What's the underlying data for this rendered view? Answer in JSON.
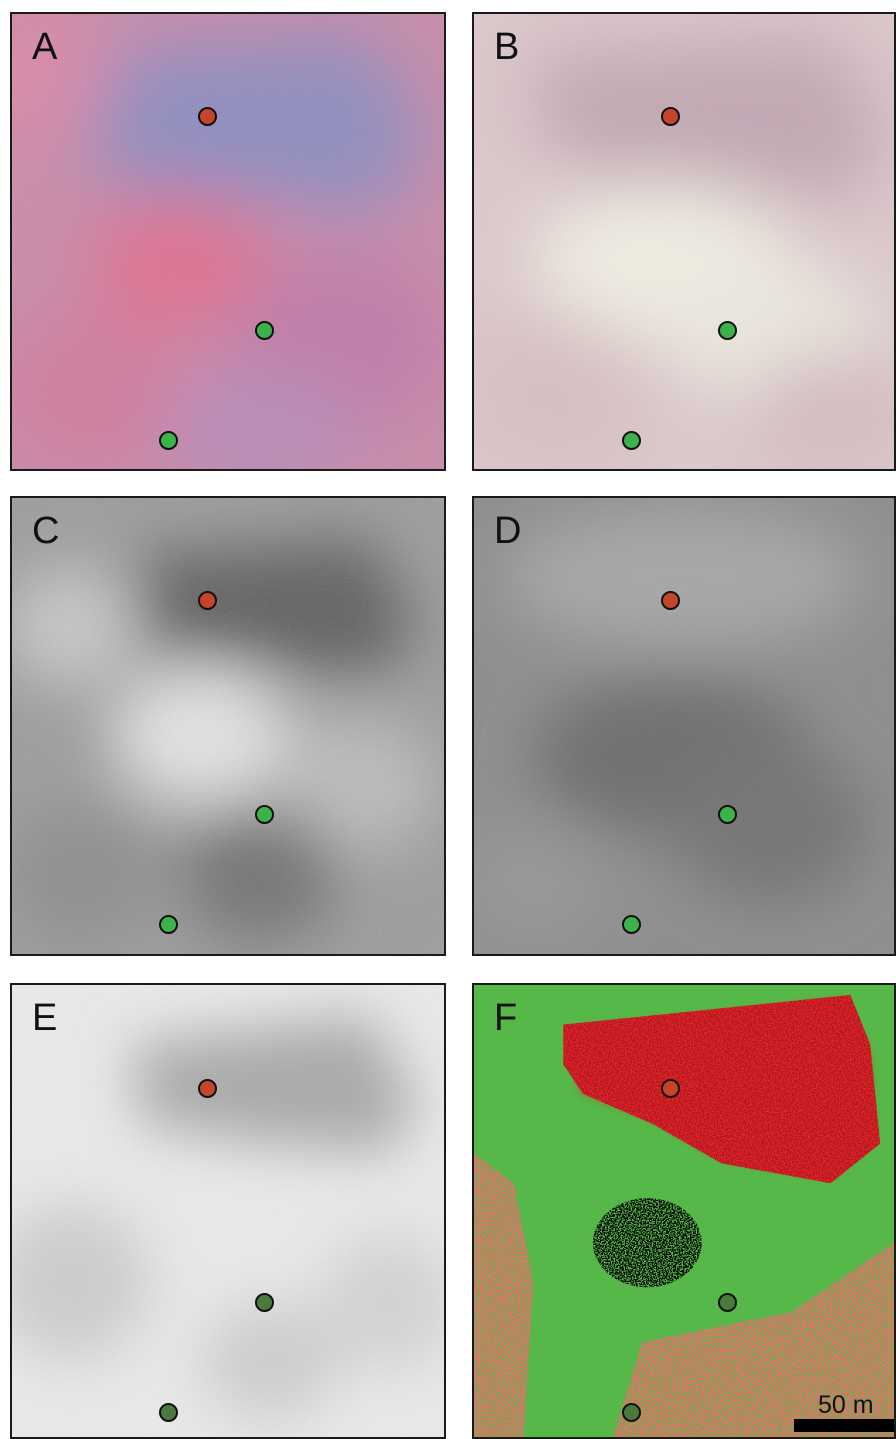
{
  "panels": [
    {
      "label": "A",
      "render": "false-color-pink"
    },
    {
      "label": "B",
      "render": "natural-color-pale"
    },
    {
      "label": "C",
      "render": "grayscale-high-contrast"
    },
    {
      "label": "D",
      "render": "grayscale-low-contrast"
    },
    {
      "label": "E",
      "render": "grayscale-washed"
    },
    {
      "label": "F",
      "render": "classification-map"
    }
  ],
  "marker_colors": {
    "red_marker": "#c4452a",
    "green_marker": "#3cb34a",
    "green_marker_dark": "#4a7a3c",
    "class_green": "#55b848",
    "class_red": "#e8232a"
  },
  "scale_bar": {
    "label": "50 m"
  }
}
